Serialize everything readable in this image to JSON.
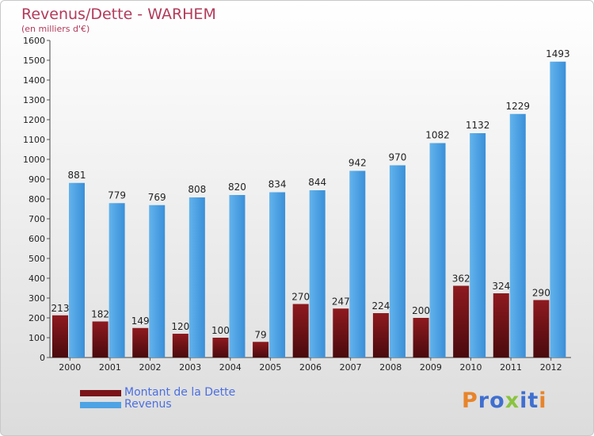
{
  "header": {
    "title": "Revenus/Dette - WARHEM",
    "subtitle": "(en milliers d'€)"
  },
  "colors": {
    "title": "#b23a5a",
    "debt": "#7a1418",
    "revenue": "#4ea3e4",
    "legend_text": "#4b6fe0"
  },
  "chart_data": {
    "type": "bar",
    "categories": [
      "2000",
      "2001",
      "2002",
      "2003",
      "2004",
      "2005",
      "2006",
      "2007",
      "2008",
      "2009",
      "2010",
      "2011",
      "2012"
    ],
    "series": [
      {
        "name": "Montant de la Dette",
        "values": [
          213,
          182,
          149,
          120,
          100,
          79,
          270,
          247,
          224,
          200,
          362,
          324,
          290
        ]
      },
      {
        "name": "Revenus",
        "values": [
          881,
          779,
          769,
          808,
          820,
          834,
          844,
          942,
          970,
          1082,
          1132,
          1229,
          1493
        ]
      }
    ],
    "ylim": [
      0,
      1600
    ],
    "yticks": [
      0,
      100,
      200,
      300,
      400,
      500,
      600,
      700,
      800,
      900,
      1000,
      1100,
      1200,
      1300,
      1400,
      1500,
      1600
    ],
    "grid": false,
    "legend_position": "bottom-left"
  },
  "legend": {
    "items": [
      {
        "label": "Montant de la Dette"
      },
      {
        "label": "Revenus"
      }
    ]
  },
  "logo": {
    "letters": [
      "P",
      "r",
      "o",
      "x",
      "i",
      "t",
      "i"
    ]
  }
}
